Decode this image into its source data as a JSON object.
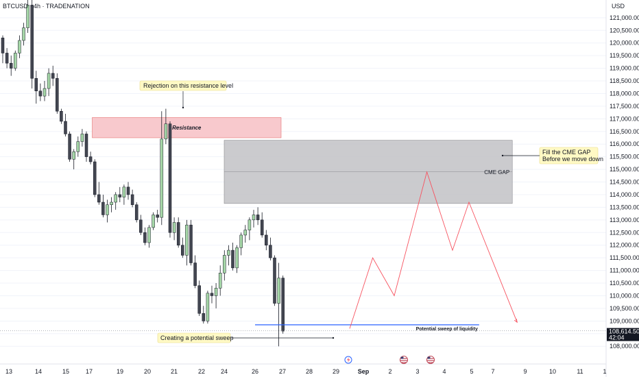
{
  "chart_data": {
    "type": "candlestick",
    "title": "BTCUSD · 4h · TRADENATION",
    "currency": "USD",
    "ylim": [
      107300,
      121700
    ],
    "y_ticks": [
      108000,
      108500,
      109000,
      109500,
      110000,
      110500,
      111000,
      111500,
      112000,
      112500,
      113000,
      113500,
      114000,
      114500,
      115000,
      115500,
      116000,
      116500,
      117000,
      117500,
      118000,
      118500,
      119000,
      119500,
      120000,
      120500,
      121000
    ],
    "x_ticks": [
      {
        "label": "13",
        "t": 0
      },
      {
        "label": "14",
        "t": 1
      },
      {
        "label": "15",
        "t": 2
      },
      {
        "label": "17",
        "t": 3
      },
      {
        "label": "19",
        "t": 4
      },
      {
        "label": "20",
        "t": 5
      },
      {
        "label": "21",
        "t": 6
      },
      {
        "label": "22",
        "t": 7
      },
      {
        "label": "24",
        "t": 8
      },
      {
        "label": "26",
        "t": 9
      },
      {
        "label": "27",
        "t": 10
      },
      {
        "label": "28",
        "t": 11
      },
      {
        "label": "29",
        "t": 12
      },
      {
        "label": "Sep",
        "t": 13,
        "bold": true
      },
      {
        "label": "2",
        "t": 14
      },
      {
        "label": "3",
        "t": 15
      },
      {
        "label": "4",
        "t": 16
      },
      {
        "label": "5",
        "t": 17
      },
      {
        "label": "7",
        "t": 18
      },
      {
        "label": "9",
        "t": 19
      },
      {
        "label": "10",
        "t": 20
      },
      {
        "label": "11",
        "t": 21
      },
      {
        "label": "1",
        "t": 22
      }
    ],
    "current_price": "108,614.50",
    "countdown": "42:04",
    "candles": [
      [
        120200,
        120300,
        119200,
        119600
      ],
      [
        119600,
        119800,
        119000,
        119200
      ],
      [
        119200,
        119500,
        118700,
        119000
      ],
      [
        119000,
        119700,
        118900,
        119600
      ],
      [
        119600,
        120300,
        119400,
        120100
      ],
      [
        120100,
        120800,
        119900,
        120600
      ],
      [
        120600,
        121700,
        120400,
        121500
      ],
      [
        121500,
        121700,
        118200,
        118600
      ],
      [
        118600,
        118900,
        117600,
        118100
      ],
      [
        118100,
        118400,
        117700,
        117900
      ],
      [
        117900,
        118500,
        117700,
        118200
      ],
      [
        118200,
        119000,
        117900,
        118800
      ],
      [
        118800,
        119100,
        118300,
        118600
      ],
      [
        118600,
        118800,
        117200,
        117300
      ],
      [
        117300,
        117400,
        116800,
        116900
      ],
      [
        116900,
        117200,
        116300,
        116400
      ],
      [
        116400,
        116500,
        115300,
        115400
      ],
      [
        115400,
        115800,
        115000,
        115700
      ],
      [
        115700,
        116300,
        115500,
        116100
      ],
      [
        116100,
        116600,
        115900,
        116400
      ],
      [
        116400,
        116500,
        115300,
        115500
      ],
      [
        115500,
        115700,
        115200,
        115300
      ],
      [
        115300,
        115400,
        113900,
        114000
      ],
      [
        114000,
        114500,
        113600,
        113700
      ],
      [
        113700,
        114000,
        113100,
        113200
      ],
      [
        113200,
        113800,
        112900,
        113600
      ],
      [
        113600,
        113900,
        113300,
        113700
      ],
      [
        113700,
        114100,
        113400,
        114000
      ],
      [
        114000,
        114300,
        113700,
        113900
      ],
      [
        113900,
        114400,
        113600,
        114300
      ],
      [
        114300,
        114500,
        113800,
        114000
      ],
      [
        114000,
        114200,
        113500,
        113600
      ],
      [
        113600,
        113700,
        112900,
        113000
      ],
      [
        113000,
        113200,
        112400,
        112500
      ],
      [
        112500,
        112700,
        112000,
        112100
      ],
      [
        112100,
        112800,
        111900,
        112700
      ],
      [
        112700,
        113300,
        112600,
        113200
      ],
      [
        113200,
        113400,
        112900,
        113100
      ],
      [
        113100,
        117300,
        112800,
        116200
      ],
      [
        116200,
        117400,
        116000,
        116800
      ],
      [
        116800,
        116900,
        112300,
        112500
      ],
      [
        112500,
        113100,
        112200,
        112900
      ],
      [
        112900,
        113100,
        111900,
        112000
      ],
      [
        112000,
        112300,
        111500,
        111600
      ],
      [
        111600,
        113000,
        111200,
        112800
      ],
      [
        112800,
        113000,
        111200,
        111300
      ],
      [
        111300,
        111600,
        110300,
        110400
      ],
      [
        110400,
        110600,
        109200,
        109300
      ],
      [
        109300,
        109600,
        108900,
        109000
      ],
      [
        109000,
        110200,
        108900,
        110100
      ],
      [
        110100,
        110400,
        109700,
        110000
      ],
      [
        110000,
        110500,
        109500,
        110300
      ],
      [
        110300,
        111200,
        110000,
        110900
      ],
      [
        110900,
        111800,
        110600,
        111600
      ],
      [
        111600,
        112000,
        111200,
        111800
      ],
      [
        111800,
        112100,
        111000,
        111100
      ],
      [
        111100,
        112000,
        110900,
        111900
      ],
      [
        111900,
        112500,
        111600,
        112400
      ],
      [
        112400,
        112800,
        112100,
        112600
      ],
      [
        112600,
        113100,
        112200,
        113000
      ],
      [
        113000,
        113400,
        112700,
        113200
      ],
      [
        113200,
        113500,
        112800,
        113000
      ],
      [
        113000,
        113300,
        112300,
        112400
      ],
      [
        112400,
        112600,
        111800,
        112000
      ],
      [
        112000,
        112300,
        111400,
        111500
      ],
      [
        111500,
        111600,
        109600,
        109700
      ],
      [
        109700,
        111300,
        108000,
        110700
      ],
      [
        110700,
        110800,
        108500,
        108600
      ]
    ],
    "resistance_zone": {
      "label": "Resistance",
      "t_start": 3.1,
      "t_end": 9.95,
      "price_high": 117050,
      "price_low": 116250
    },
    "cme_gap": {
      "label": "CME GAP",
      "t_start": 8.0,
      "t_end": 18.6,
      "price_high": 116150,
      "price_low": 113650,
      "mid": 114900
    },
    "liquidity_line": {
      "label": "Potential sweep of liquidity",
      "price": 108850,
      "t_start": 9.0,
      "t_end": 17.35
    },
    "projection_path": [
      [
        12.5,
        108700
      ],
      [
        13.35,
        111500
      ],
      [
        14.15,
        110000
      ],
      [
        15.35,
        114900
      ],
      [
        16.3,
        111800
      ],
      [
        16.9,
        113700
      ],
      [
        18.75,
        108950
      ]
    ],
    "annotations": [
      {
        "text": "Rejection on this resistance level"
      },
      {
        "text": "Fill the CME GAP"
      },
      {
        "text": "Before we move down"
      },
      {
        "text": "Creating a potential sweep"
      }
    ],
    "colors": {
      "up": "#a5d6a7",
      "down": "#434651",
      "zone": "#f8c9cd",
      "gap": "#c2c2c6",
      "projection": "#f7525f",
      "liquidity": "#2962ff",
      "note": "#fff9c4"
    }
  }
}
